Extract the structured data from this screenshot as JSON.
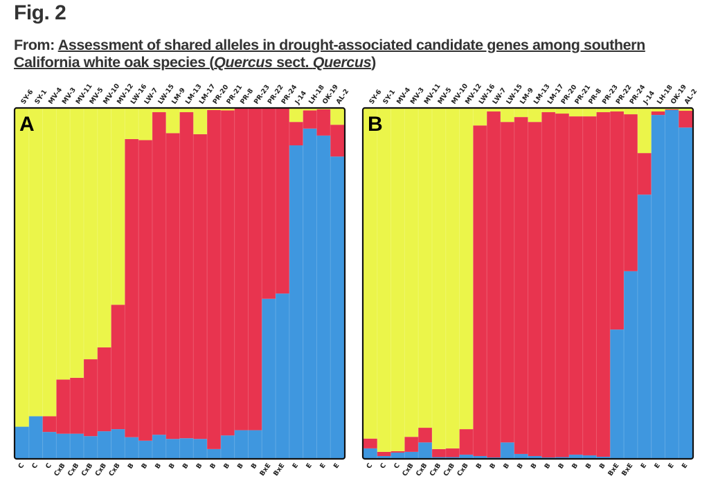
{
  "figure": {
    "label": "Fig. 2",
    "from_prefix": "From: ",
    "title_part1": "Assessment of shared alleles in drought-associated candidate genes among southern California white oak species (",
    "title_italic1": "Quercus",
    "title_part2": " sect. ",
    "title_italic2": "Quercus",
    "title_part3": ")"
  },
  "chart_data": [
    {
      "type": "bar",
      "stacked": true,
      "panel": "A",
      "categories": [
        "SY-6",
        "SY-1",
        "MV-4",
        "MV-3",
        "MV-11",
        "MV-5",
        "MV-10",
        "MV-12",
        "LW-16",
        "LW-7",
        "LW-15",
        "LM-9",
        "LM-13",
        "LM-17",
        "PR-20",
        "PR-21",
        "PR-8",
        "PR-23",
        "PR-22",
        "PR-24",
        "J-14",
        "LH-18",
        "OK-19",
        "AL-2"
      ],
      "group_labels": [
        "C",
        "C",
        "C",
        "CxB",
        "CxB",
        "CxB",
        "CxB",
        "CxB",
        "B",
        "B",
        "B",
        "B",
        "B",
        "B",
        "B",
        "B",
        "B",
        "B",
        "BxE",
        "BxE",
        "E",
        "E",
        "E",
        "E"
      ],
      "ylim": [
        0,
        1
      ],
      "series": [
        {
          "name": "cluster-blue",
          "color": "#3F97DF",
          "values": [
            0.09,
            0.12,
            0.075,
            0.07,
            0.07,
            0.063,
            0.077,
            0.083,
            0.06,
            0.05,
            0.067,
            0.055,
            0.057,
            0.055,
            0.026,
            0.065,
            0.08,
            0.08,
            0.456,
            0.471,
            0.895,
            0.943,
            0.923,
            0.863
          ]
        },
        {
          "name": "cluster-red",
          "color": "#E8344F",
          "values": [
            0.0,
            0.0,
            0.045,
            0.155,
            0.16,
            0.22,
            0.24,
            0.356,
            0.853,
            0.86,
            0.923,
            0.875,
            0.933,
            0.872,
            0.97,
            0.93,
            0.92,
            0.92,
            0.544,
            0.529,
            0.067,
            0.052,
            0.075,
            0.091
          ]
        },
        {
          "name": "cluster-yellow",
          "color": "#EBF54A",
          "values": [
            0.91,
            0.88,
            0.88,
            0.775,
            0.77,
            0.717,
            0.683,
            0.561,
            0.087,
            0.09,
            0.01,
            0.07,
            0.01,
            0.073,
            0.004,
            0.005,
            0.0,
            0.0,
            0.0,
            0.0,
            0.038,
            0.005,
            0.002,
            0.046
          ]
        }
      ]
    },
    {
      "type": "bar",
      "stacked": true,
      "panel": "B",
      "categories": [
        "SY-6",
        "SY-1",
        "MV-4",
        "MV-3",
        "MV-11",
        "MV-5",
        "MV-10",
        "MV-12",
        "LW-16",
        "LW-7",
        "LW-15",
        "LM-9",
        "LM-13",
        "LM-17",
        "PR-20",
        "PR-21",
        "PR-8",
        "PR-23",
        "PR-22",
        "PR-24",
        "J-14",
        "LH-18",
        "OK-19",
        "AL-2"
      ],
      "group_labels": [
        "C",
        "C",
        "C",
        "CxB",
        "CxB",
        "CxB",
        "CxB",
        "CxB",
        "B",
        "B",
        "B",
        "B",
        "B",
        "B",
        "B",
        "B",
        "B",
        "B",
        "BxE",
        "BxE",
        "E",
        "E",
        "E",
        "E"
      ],
      "ylim": [
        0,
        1
      ],
      "series": [
        {
          "name": "cluster-blue",
          "color": "#3F97DF",
          "values": [
            0.028,
            0.006,
            0.016,
            0.018,
            0.045,
            0.003,
            0.003,
            0.01,
            0.006,
            0.002,
            0.045,
            0.012,
            0.006,
            0.002,
            0.003,
            0.01,
            0.008,
            0.004,
            0.368,
            0.535,
            0.754,
            0.982,
            0.996,
            0.946
          ]
        },
        {
          "name": "cluster-red",
          "color": "#E8344F",
          "values": [
            0.028,
            0.012,
            0.004,
            0.043,
            0.042,
            0.023,
            0.025,
            0.073,
            0.946,
            0.99,
            0.917,
            0.964,
            0.956,
            0.988,
            0.983,
            0.968,
            0.97,
            0.986,
            0.624,
            0.449,
            0.119,
            0.01,
            0.002,
            0.048
          ]
        },
        {
          "name": "cluster-yellow",
          "color": "#EBF54A",
          "values": [
            0.944,
            0.982,
            0.98,
            0.939,
            0.913,
            0.974,
            0.972,
            0.917,
            0.048,
            0.008,
            0.038,
            0.024,
            0.038,
            0.01,
            0.014,
            0.022,
            0.022,
            0.01,
            0.008,
            0.016,
            0.127,
            0.008,
            0.002,
            0.006
          ]
        }
      ]
    }
  ]
}
